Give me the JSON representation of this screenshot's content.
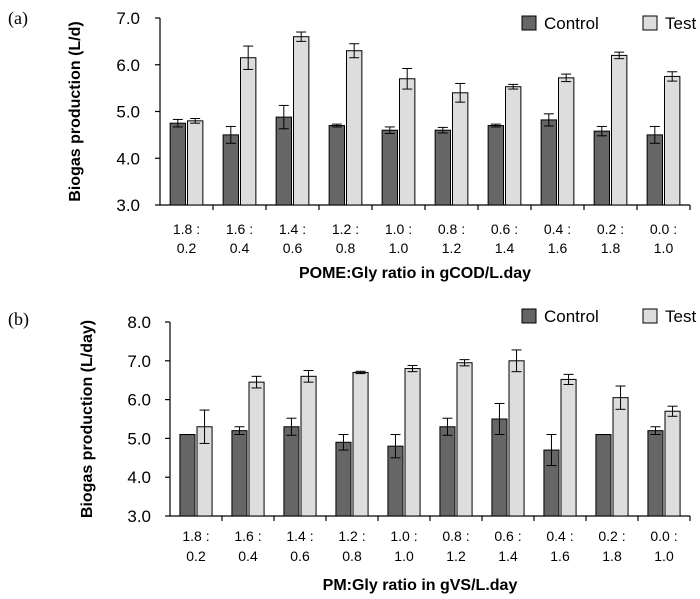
{
  "chart_data": [
    {
      "type": "bar",
      "panel_label": "(a)",
      "categories": [
        [
          "1.8 :",
          "0.2"
        ],
        [
          "1.6 :",
          "0.4"
        ],
        [
          "1.4 :",
          "0.6"
        ],
        [
          "1.2 :",
          "0.8"
        ],
        [
          "1.0 :",
          "1.0"
        ],
        [
          "0.8 :",
          "1.2"
        ],
        [
          "0.6 :",
          "1.4"
        ],
        [
          "0.4 :",
          "1.6"
        ],
        [
          "0.2 :",
          "1.8"
        ],
        [
          "0.0 :",
          "1.0"
        ]
      ],
      "series": [
        {
          "name": "Control",
          "color": "#666666",
          "values": [
            4.75,
            4.5,
            4.88,
            4.7,
            4.6,
            4.6,
            4.7,
            4.82,
            4.58,
            4.5
          ],
          "errors": [
            0.08,
            0.18,
            0.25,
            0.03,
            0.07,
            0.06,
            0.03,
            0.13,
            0.1,
            0.18
          ]
        },
        {
          "name": "Test",
          "color": "#dddddd",
          "values": [
            4.8,
            6.15,
            6.6,
            6.3,
            5.7,
            5.4,
            5.53,
            5.72,
            6.2,
            5.75
          ],
          "errors": [
            0.05,
            0.25,
            0.1,
            0.15,
            0.22,
            0.2,
            0.05,
            0.08,
            0.07,
            0.1
          ]
        }
      ],
      "ylabel": "Biogas production (L/d)",
      "xlabel": "POME:Gly ratio in  gCOD/L.day",
      "ylim": [
        3.0,
        7.0
      ],
      "yticks": [
        "3.0",
        "4.0",
        "5.0",
        "6.0",
        "7.0"
      ],
      "grid": false,
      "legend": "top-right"
    },
    {
      "type": "bar",
      "panel_label": "(b)",
      "categories": [
        [
          "1.8 :",
          "0.2"
        ],
        [
          "1.6 :",
          "0.4"
        ],
        [
          "1.4 :",
          "0.6"
        ],
        [
          "1.2 :",
          "0.8"
        ],
        [
          "1.0 :",
          "1.0"
        ],
        [
          "0.8 :",
          "1.2"
        ],
        [
          "0.6 :",
          "1.4"
        ],
        [
          "0.4 :",
          "1.6"
        ],
        [
          "0.2 :",
          "1.8"
        ],
        [
          "0.0 :",
          "1.0"
        ]
      ],
      "series": [
        {
          "name": "Control",
          "color": "#666666",
          "values": [
            5.1,
            5.2,
            5.3,
            4.9,
            4.8,
            5.3,
            5.5,
            4.7,
            5.1,
            5.2
          ],
          "errors": [
            0.0,
            0.1,
            0.22,
            0.2,
            0.3,
            0.22,
            0.4,
            0.4,
            0.0,
            0.1
          ]
        },
        {
          "name": "Test",
          "color": "#dddddd",
          "values": [
            5.3,
            6.45,
            6.6,
            6.7,
            6.8,
            6.95,
            7.0,
            6.52,
            6.05,
            5.7
          ],
          "errors": [
            0.43,
            0.15,
            0.15,
            0.03,
            0.08,
            0.08,
            0.28,
            0.13,
            0.3,
            0.13
          ]
        }
      ],
      "ylabel": "Biogas production (L/day)",
      "xlabel": "PM:Gly ratio in  gVS/L.day",
      "ylim": [
        3.0,
        8.0
      ],
      "yticks": [
        "3.0",
        "4.0",
        "5.0",
        "6.0",
        "7.0",
        "8.0"
      ],
      "grid": false,
      "legend": "top-right"
    }
  ]
}
